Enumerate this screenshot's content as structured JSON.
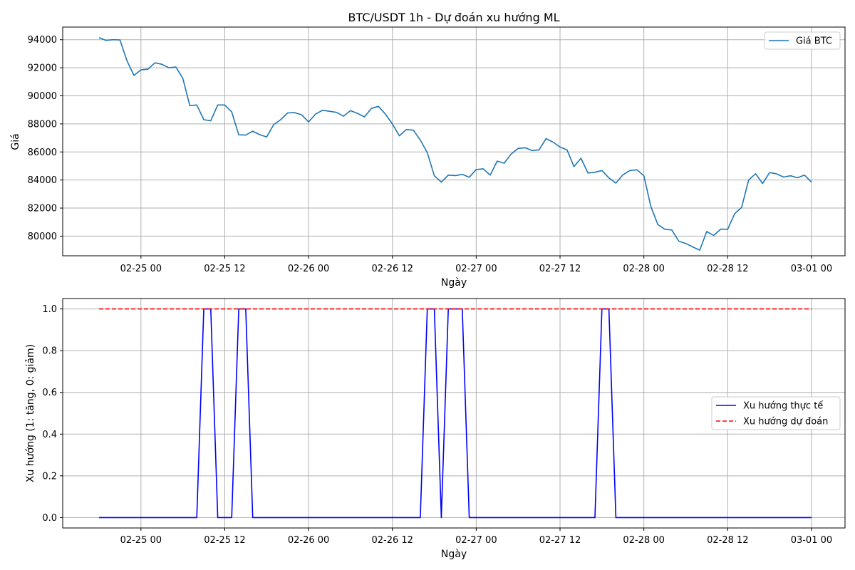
{
  "chart_data": [
    {
      "type": "line",
      "title": "BTC/USDT 1h - Dự đoán xu hướng ML",
      "xlabel": "Ngày",
      "ylabel": "Giá",
      "x_tick_labels": [
        "02-25 00",
        "02-25 12",
        "02-26 00",
        "02-26 12",
        "02-27 00",
        "02-27 12",
        "02-28 00",
        "02-28 12",
        "03-01 00"
      ],
      "x_tick_hours": [
        0,
        12,
        24,
        36,
        48,
        60,
        72,
        84,
        96
      ],
      "xlim_hours": [
        -11.2,
        100.8
      ],
      "ylim": [
        78600,
        94900
      ],
      "y_ticks": [
        80000,
        82000,
        84000,
        86000,
        88000,
        90000,
        92000,
        94000
      ],
      "y_tick_labels": [
        "80000",
        "82000",
        "84000",
        "86000",
        "88000",
        "90000",
        "92000",
        "94000"
      ],
      "grid": true,
      "legend_position": "top-right",
      "x_start": "02-24 18:00",
      "x_step_hours": 1,
      "series": [
        {
          "name": "Giá BTC",
          "color": "#1f77b4",
          "style": "solid",
          "values": [
            94150,
            93950,
            94000,
            93980,
            92500,
            91450,
            91850,
            91900,
            92350,
            92250,
            92000,
            92050,
            91250,
            89300,
            89350,
            88300,
            88220,
            89350,
            89350,
            88850,
            87220,
            87200,
            87480,
            87230,
            87070,
            87950,
            88300,
            88780,
            88800,
            88650,
            88140,
            88700,
            88970,
            88900,
            88820,
            88550,
            88950,
            88750,
            88500,
            89100,
            89250,
            88700,
            88000,
            87150,
            87600,
            87550,
            86850,
            85950,
            84300,
            83850,
            84350,
            84320,
            84400,
            84200,
            84750,
            84800,
            84350,
            85350,
            85200,
            85850,
            86250,
            86300,
            86100,
            86150,
            86950,
            86700,
            86350,
            86150,
            84950,
            85550,
            84500,
            84550,
            84680,
            84150,
            83780,
            84370,
            84680,
            84730,
            84300,
            82100,
            80830,
            80490,
            80440,
            79640,
            79480,
            79230,
            79000,
            80330,
            80050,
            80500,
            80490,
            81600,
            82050,
            84000,
            84450,
            83750,
            84530,
            84440,
            84210,
            84300,
            84160,
            84350,
            83850
          ]
        }
      ]
    },
    {
      "type": "line",
      "title": "",
      "xlabel": "Ngày",
      "ylabel": "Xu hướng (1: tăng, 0: giảm)",
      "x_tick_labels": [
        "02-25 00",
        "02-25 12",
        "02-26 00",
        "02-26 12",
        "02-27 00",
        "02-27 12",
        "02-28 00",
        "02-28 12",
        "03-01 00"
      ],
      "x_tick_hours": [
        0,
        12,
        24,
        36,
        48,
        60,
        72,
        84,
        96
      ],
      "xlim_hours": [
        -11.2,
        100.8
      ],
      "ylim": [
        -0.05,
        1.05
      ],
      "y_ticks": [
        0,
        0.2,
        0.4,
        0.6,
        0.8,
        1.0
      ],
      "y_tick_labels": [
        "0.0",
        "0.2",
        "0.4",
        "0.6",
        "0.8",
        "1.0"
      ],
      "grid": true,
      "legend_position": "center-right",
      "x_start": "02-24 18:00",
      "x_step_hours": 1,
      "series": [
        {
          "name": "Xu hướng thực tế",
          "color": "#0000ff",
          "style": "solid",
          "values": [
            0,
            0,
            0,
            0,
            0,
            0,
            0,
            0,
            0,
            0,
            0,
            0,
            0,
            0,
            0,
            1,
            1,
            0,
            0,
            0,
            1,
            1,
            0,
            0,
            0,
            0,
            0,
            0,
            0,
            0,
            0,
            0,
            0,
            0,
            0,
            0,
            0,
            0,
            0,
            0,
            0,
            0,
            0,
            0,
            0,
            0,
            0,
            1,
            1,
            0,
            1,
            1,
            1,
            0,
            0,
            0,
            0,
            0,
            0,
            0,
            0,
            0,
            0,
            0,
            0,
            0,
            0,
            0,
            0,
            0,
            0,
            0,
            1,
            1,
            0,
            0,
            0,
            0,
            0,
            0,
            0,
            0,
            0,
            0,
            0,
            0,
            0,
            0,
            0,
            0,
            0,
            0,
            0,
            0,
            0,
            0,
            0,
            0,
            0,
            0,
            0,
            0,
            0
          ]
        },
        {
          "name": "Xu hướng dự đoán",
          "color": "#ff0000",
          "style": "dashed",
          "values": [
            1,
            1,
            1,
            1,
            1,
            1,
            1,
            1,
            1,
            1,
            1,
            1,
            1,
            1,
            1,
            1,
            1,
            1,
            1,
            1,
            1,
            1,
            1,
            1,
            1,
            1,
            1,
            1,
            1,
            1,
            1,
            1,
            1,
            1,
            1,
            1,
            1,
            1,
            1,
            1,
            1,
            1,
            1,
            1,
            1,
            1,
            1,
            1,
            1,
            1,
            1,
            1,
            1,
            1,
            1,
            1,
            1,
            1,
            1,
            1,
            1,
            1,
            1,
            1,
            1,
            1,
            1,
            1,
            1,
            1,
            1,
            1,
            1,
            1,
            1,
            1,
            1,
            1,
            1,
            1,
            1,
            1,
            1,
            1,
            1,
            1,
            1,
            1,
            1,
            1,
            1,
            1,
            1,
            1,
            1,
            1,
            1,
            1,
            1,
            1,
            1,
            1,
            1
          ]
        }
      ]
    }
  ]
}
